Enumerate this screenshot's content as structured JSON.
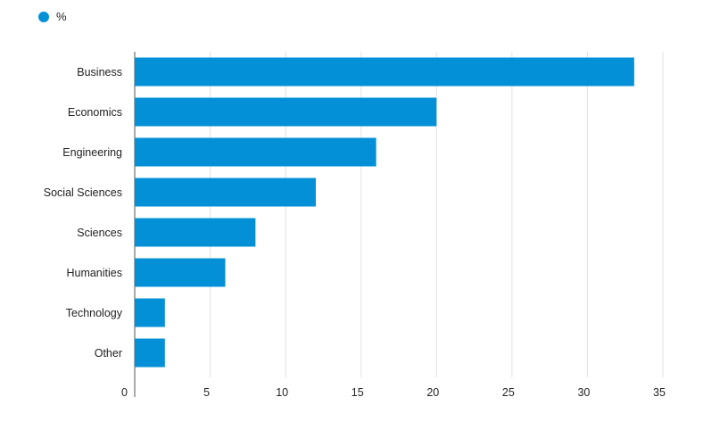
{
  "chart_data": {
    "type": "bar",
    "orientation": "horizontal",
    "categories": [
      "Business",
      "Economics",
      "Engineering",
      "Social Sciences",
      "Sciences",
      "Humanities",
      "Technology",
      "Other"
    ],
    "series": [
      {
        "name": "%",
        "values": [
          33.1,
          20.0,
          16.0,
          12.0,
          8.0,
          6.0,
          2.0,
          2.0
        ],
        "color": "#0390d6"
      }
    ],
    "xticks": [
      0,
      5,
      10,
      15,
      20,
      25,
      30,
      35
    ],
    "xlim": [
      0,
      35
    ],
    "grid": "vertical",
    "legend_position": "top-left"
  }
}
